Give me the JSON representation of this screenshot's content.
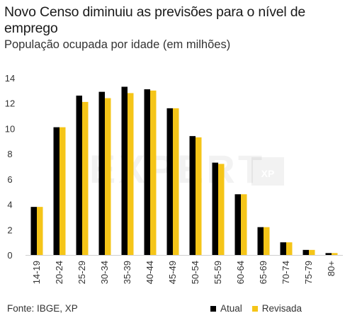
{
  "header": {
    "title": "Novo Censo diminuiu as previsões para o nível de emprego",
    "subtitle": "População ocupada por idade (em milhões)"
  },
  "footer": {
    "source": "Fonte: IBGE, XP"
  },
  "watermark": {
    "text": "EXPERT",
    "badge": "XP"
  },
  "colors": {
    "atual": "#000000",
    "revisada": "#F5C518",
    "axis": "#cfcfcf",
    "tick": "#333333"
  },
  "chart_data": {
    "type": "bar",
    "title": "Novo Censo diminuiu as previsões para o nível de emprego",
    "subtitle": "População ocupada por idade (em milhões)",
    "categories": [
      "14-19",
      "20-24",
      "25-29",
      "30-34",
      "35-39",
      "40-44",
      "45-49",
      "50-54",
      "55-59",
      "60-64",
      "65-69",
      "70-74",
      "75-79",
      "80+"
    ],
    "series": [
      {
        "name": "Atual",
        "values": [
          3.8,
          10.1,
          12.6,
          12.9,
          13.3,
          13.1,
          11.6,
          9.4,
          7.3,
          4.8,
          2.2,
          1.0,
          0.4,
          0.15
        ]
      },
      {
        "name": "Revisada",
        "values": [
          3.8,
          10.1,
          12.1,
          12.4,
          12.8,
          13.0,
          11.6,
          9.3,
          7.2,
          4.8,
          2.2,
          1.0,
          0.4,
          0.15
        ]
      }
    ],
    "ylim": [
      0,
      14
    ],
    "yticks": [
      0,
      2,
      4,
      6,
      8,
      10,
      12,
      14
    ],
    "legend_position": "bottom-right",
    "grid": false
  },
  "legend": {
    "atual": "Atual",
    "revisada": "Revisada"
  }
}
